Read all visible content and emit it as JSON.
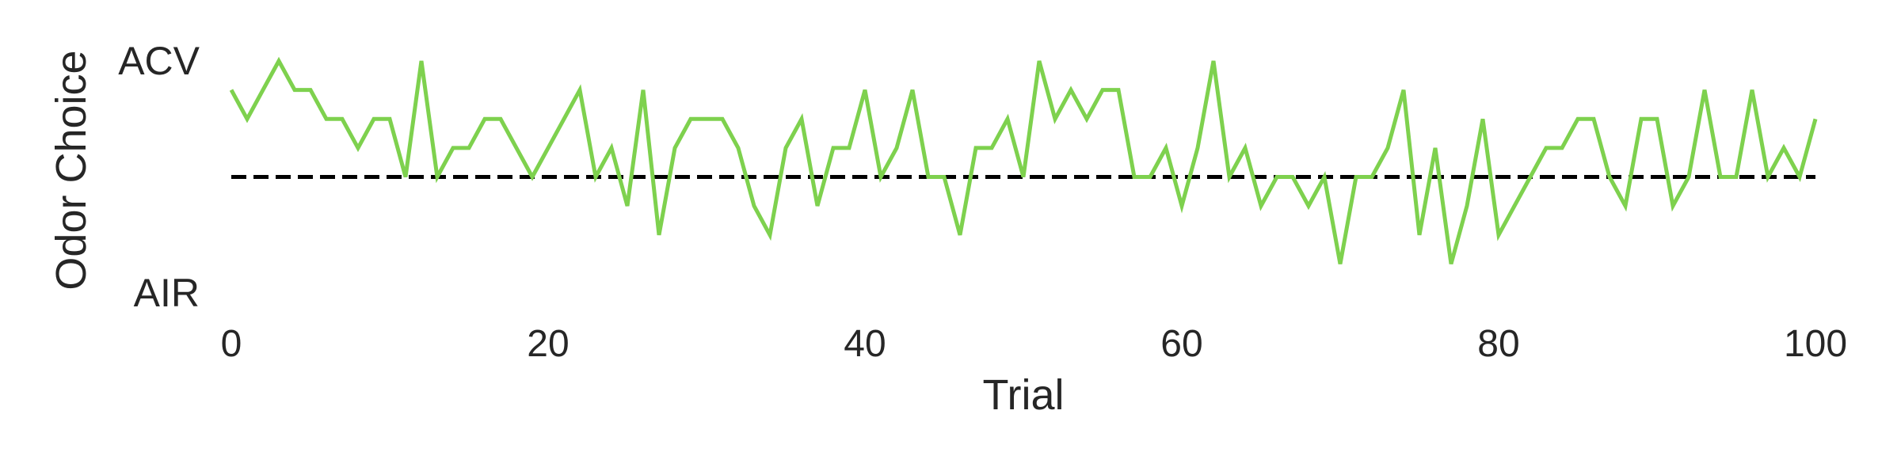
{
  "chart_data": {
    "type": "line",
    "title": "",
    "xlabel": "Trial",
    "ylabel": "Odor Choice",
    "xlim": [
      0,
      100
    ],
    "ylim": [
      -1,
      1
    ],
    "xticks": [
      0,
      20,
      40,
      60,
      80,
      100
    ],
    "xtick_labels": [
      "0",
      "20",
      "40",
      "60",
      "80",
      "100"
    ],
    "yticks": [
      1,
      -1
    ],
    "ytick_labels": [
      "ACV",
      "AIR"
    ],
    "grid": false,
    "series": [
      {
        "name": "",
        "color": "#7ed14e",
        "x": [
          0,
          1,
          2,
          3,
          4,
          5,
          6,
          7,
          8,
          9,
          10,
          11,
          12,
          13,
          14,
          15,
          16,
          17,
          18,
          19,
          20,
          21,
          22,
          23,
          24,
          25,
          26,
          27,
          28,
          29,
          30,
          31,
          32,
          33,
          34,
          35,
          36,
          37,
          38,
          39,
          40,
          41,
          42,
          43,
          44,
          45,
          46,
          47,
          48,
          49,
          50,
          51,
          52,
          53,
          54,
          55,
          56,
          57,
          58,
          59,
          60,
          61,
          62,
          63,
          64,
          65,
          66,
          67,
          68,
          69,
          70,
          71,
          72,
          73,
          74,
          75,
          76,
          77,
          78,
          79,
          80,
          81,
          82,
          83,
          84,
          85,
          86,
          87,
          88,
          89,
          90,
          91,
          92,
          93,
          94,
          95,
          96,
          97,
          98,
          99,
          100
        ],
        "y": [
          0.75,
          0.5,
          0.75,
          1.0,
          0.75,
          0.75,
          0.5,
          0.5,
          0.25,
          0.5,
          0.5,
          0.0,
          1.0,
          0.0,
          0.25,
          0.25,
          0.5,
          0.5,
          0.25,
          0.0,
          0.25,
          0.5,
          0.75,
          0.0,
          0.25,
          -0.25,
          0.75,
          -0.5,
          0.25,
          0.5,
          0.5,
          0.5,
          0.25,
          -0.25,
          -0.5,
          0.25,
          0.5,
          -0.25,
          0.25,
          0.25,
          0.75,
          0.0,
          0.25,
          0.75,
          0.0,
          0.0,
          -0.5,
          0.25,
          0.25,
          0.5,
          0.0,
          1.0,
          0.5,
          0.75,
          0.5,
          0.75,
          0.75,
          0.0,
          0.0,
          0.25,
          -0.25,
          0.25,
          1.0,
          0.0,
          0.25,
          -0.25,
          0.0,
          0.0,
          -0.25,
          0.0,
          -0.75,
          0.0,
          0.0,
          0.25,
          0.75,
          -0.5,
          0.25,
          -0.75,
          -0.25,
          0.5,
          -0.5,
          -0.25,
          0.0,
          0.25,
          0.25,
          0.5,
          0.5,
          0.0,
          -0.25,
          0.5,
          0.5,
          -0.25,
          0.0,
          0.75,
          0.0,
          0.0,
          0.75,
          0.0,
          0.25,
          0.0,
          0.5
        ]
      }
    ],
    "reference_lines": [
      {
        "orientation": "horizontal",
        "y": 0,
        "style": "dashed",
        "color": "#000000"
      }
    ]
  }
}
